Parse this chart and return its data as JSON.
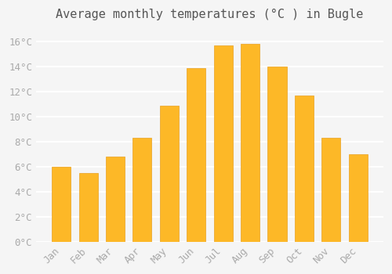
{
  "title": "Average monthly temperatures (°C ) in Bugle",
  "months": [
    "Jan",
    "Feb",
    "Mar",
    "Apr",
    "May",
    "Jun",
    "Jul",
    "Aug",
    "Sep",
    "Oct",
    "Nov",
    "Dec"
  ],
  "values": [
    6.0,
    5.5,
    6.8,
    8.3,
    10.9,
    13.9,
    15.7,
    15.8,
    14.0,
    11.7,
    8.3,
    7.0
  ],
  "bar_color": "#FDB827",
  "bar_edge_color": "#E8A020",
  "background_color": "#F5F5F5",
  "grid_color": "#FFFFFF",
  "tick_label_color": "#AAAAAA",
  "title_color": "#555555",
  "ylim": [
    0,
    17
  ],
  "yticks": [
    0,
    2,
    4,
    6,
    8,
    10,
    12,
    14,
    16
  ],
  "ytick_labels": [
    "0°C",
    "2°C",
    "4°C",
    "6°C",
    "8°C",
    "10°C",
    "12°C",
    "14°C",
    "16°C"
  ],
  "title_fontsize": 11,
  "tick_fontsize": 9,
  "font_family": "monospace"
}
